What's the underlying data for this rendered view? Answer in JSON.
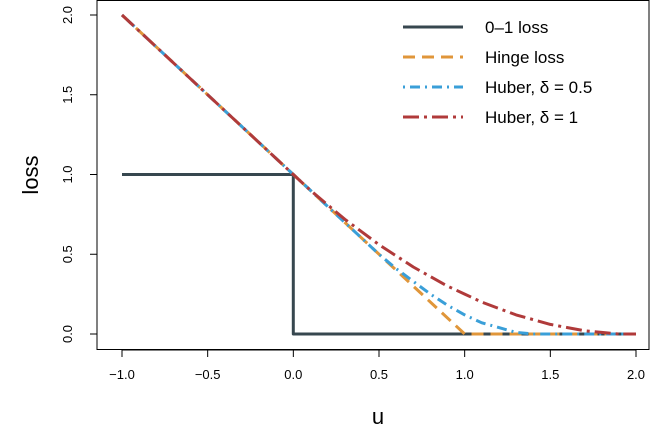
{
  "chart_data": {
    "type": "line",
    "title": "",
    "xlabel": "u",
    "ylabel": "loss",
    "xlim": [
      -1.0,
      2.0
    ],
    "ylim": [
      0.0,
      2.0
    ],
    "x_ticks": [
      {
        "value": -1.0,
        "label": "−1.0"
      },
      {
        "value": -0.5,
        "label": "−0.5"
      },
      {
        "value": 0.0,
        "label": "0.0"
      },
      {
        "value": 0.5,
        "label": "0.5"
      },
      {
        "value": 1.0,
        "label": "1.0"
      },
      {
        "value": 1.5,
        "label": "1.5"
      },
      {
        "value": 2.0,
        "label": "2.0"
      }
    ],
    "y_ticks": [
      {
        "value": 0.0,
        "label": "0.0"
      },
      {
        "value": 0.5,
        "label": "0.5"
      },
      {
        "value": 1.0,
        "label": "1.0"
      },
      {
        "value": 1.5,
        "label": "1.5"
      },
      {
        "value": 2.0,
        "label": "2.0"
      }
    ],
    "grid": false,
    "legend_position": "top-right",
    "series": [
      {
        "name": "0–1 loss",
        "color": "#37474f",
        "dash": "solid",
        "x": [
          -1.0,
          0.0,
          0.0,
          2.0
        ],
        "y": [
          1.0,
          1.0,
          0.0,
          0.0
        ]
      },
      {
        "name": "Hinge loss",
        "color": "#e0963a",
        "dash": "dashed",
        "x": [
          -1.0,
          1.0,
          2.0
        ],
        "y": [
          2.0,
          0.0,
          0.0
        ]
      },
      {
        "name": "Huber, δ = 0.5",
        "color": "#3a9fd8",
        "dash": "dotdash",
        "x": [
          -1.0,
          0.0,
          0.1,
          0.2,
          0.3,
          0.4,
          0.5,
          0.6,
          0.7,
          0.8,
          0.9,
          1.0,
          1.1,
          1.2,
          1.3,
          1.4,
          1.5,
          2.0
        ],
        "y": [
          2.0,
          1.0,
          0.9,
          0.8,
          0.7,
          0.6,
          0.5,
          0.41,
          0.33,
          0.25,
          0.18,
          0.12,
          0.07,
          0.04,
          0.01,
          0.0,
          0.0,
          0.0
        ]
      },
      {
        "name": "Huber, δ = 1",
        "color": "#b03a3a",
        "dash": "longdash-dot",
        "x": [
          -1.0,
          0.0,
          0.1,
          0.2,
          0.3,
          0.4,
          0.5,
          0.6,
          0.7,
          0.8,
          0.9,
          1.0,
          1.1,
          1.2,
          1.3,
          1.4,
          1.5,
          1.6,
          1.7,
          1.8,
          1.9,
          2.0
        ],
        "y": [
          2.0,
          1.0,
          0.9,
          0.81,
          0.72,
          0.64,
          0.56,
          0.49,
          0.42,
          0.36,
          0.3,
          0.25,
          0.2,
          0.16,
          0.12,
          0.09,
          0.06,
          0.04,
          0.02,
          0.01,
          0.0,
          0.0
        ]
      }
    ],
    "legend": [
      {
        "label": "0–1 loss",
        "series": 0
      },
      {
        "label": "Hinge loss",
        "series": 1
      },
      {
        "label": "Huber, δ = 0.5",
        "series": 2
      },
      {
        "label": "Huber, δ = 1",
        "series": 3
      }
    ]
  }
}
